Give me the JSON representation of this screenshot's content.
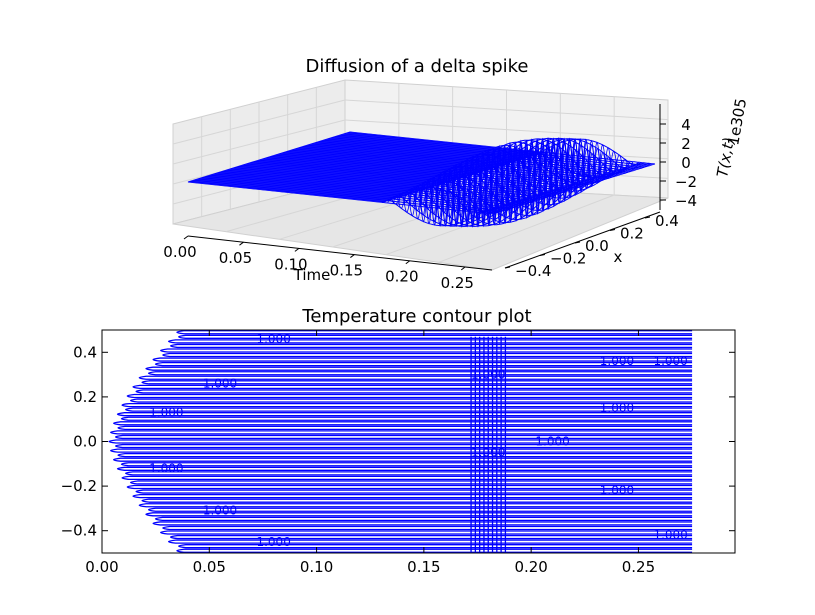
{
  "chart_data": [
    {
      "type": "surface",
      "title": "Diffusion of a delta spike",
      "xlabel": "Time",
      "ylabel": "x",
      "zlabel": "T(x,t)",
      "z_offset_text": "1e305",
      "xlim": [
        0,
        0.275
      ],
      "ylim": [
        -0.5,
        0.5
      ],
      "zlim": [
        -5,
        5
      ],
      "x_ticks": [
        "0.00",
        "0.05",
        "0.10",
        "0.15",
        "0.20",
        "0.25"
      ],
      "y_ticks": [
        "−0.4",
        "−0.2",
        "0.0",
        "0.2",
        "0.4"
      ],
      "z_ticks": [
        "4",
        "2",
        "0",
        "−2",
        "−4"
      ],
      "flat_until_time": 0.175,
      "oscillation_peak_amplitude": 4.5,
      "color": "#0000ff"
    },
    {
      "type": "contour",
      "title": "Temperature contour plot",
      "xlim": [
        0,
        0.295
      ],
      "ylim": [
        -0.5,
        0.5
      ],
      "x_ticks": [
        "0.00",
        "0.05",
        "0.10",
        "0.15",
        "0.20",
        "0.25"
      ],
      "y_ticks": [
        "0.4",
        "0.2",
        "0.0",
        "−0.2",
        "−0.4"
      ],
      "level_label": "1.000",
      "level_count": 49,
      "data_time_end": 0.275,
      "dense_band_time": [
        0.172,
        0.188
      ],
      "color": "#0000ff"
    }
  ]
}
